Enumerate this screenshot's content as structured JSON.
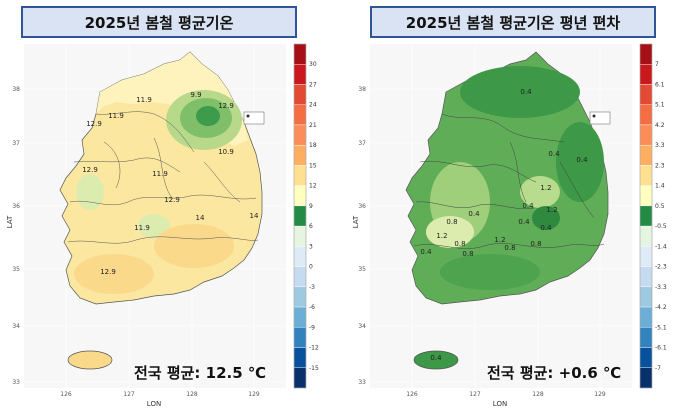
{
  "left_panel": {
    "title": "2025년 봄철 평균기온",
    "national_avg": "전국 평균: 12.5 ℃",
    "x_axis_label": "LON",
    "y_axis_label": "LAT",
    "x_ticks": [
      "126",
      "127",
      "128",
      "129"
    ],
    "y_ticks": [
      "33",
      "34",
      "35",
      "36",
      "37",
      "38"
    ],
    "contour_labels": [
      "11.9",
      "12.9",
      "9.9",
      "12.9",
      "11.9",
      "11.9",
      "10.9",
      "12.9",
      "14",
      "11.9",
      "12.9",
      "14",
      "12.9"
    ],
    "legend": {
      "values": [
        "30",
        "27",
        "24",
        "21",
        "18",
        "15",
        "12",
        "9",
        "6",
        "3",
        "0",
        "-3",
        "-6",
        "-9",
        "-12",
        "-15"
      ],
      "colors": [
        "#a50f15",
        "#cb181d",
        "#e34a33",
        "#f46d43",
        "#fc8d59",
        "#fdae61",
        "#fee090",
        "#ffffbf",
        "#238b45",
        "#e5f5e0",
        "#deebf7",
        "#c6dbef",
        "#9ecae1",
        "#6baed6",
        "#3182bd",
        "#08519c",
        "#08306b"
      ]
    }
  },
  "right_panel": {
    "title": "2025년 봄철 평균기온 평년 편차",
    "national_avg": "전국 평균: +0.6 ℃",
    "x_axis_label": "LON",
    "y_axis_label": "LAT",
    "x_ticks": [
      "126",
      "127",
      "128",
      "129"
    ],
    "y_ticks": [
      "33",
      "34",
      "35",
      "36",
      "37",
      "38"
    ],
    "contour_labels": [
      "0.4",
      "0.4",
      "0.4",
      "1.2",
      "0.4",
      "0.4",
      "0.8",
      "1.2",
      "0.8",
      "0.4",
      "1.2",
      "1.2",
      "0.8",
      "0.8",
      "0.4",
      "0.8",
      "0.4",
      "0.4"
    ],
    "legend": {
      "values": [
        "7",
        "6.1",
        "5.1",
        "4.2",
        "3.3",
        "2.3",
        "1.4",
        "0.5",
        "-0.5",
        "-1.4",
        "-2.3",
        "-3.3",
        "-4.2",
        "-5.1",
        "-6.1",
        "-7"
      ],
      "colors": [
        "#a50f15",
        "#cb181d",
        "#e34a33",
        "#f46d43",
        "#fc8d59",
        "#fdae61",
        "#fee090",
        "#ffffbf",
        "#238b45",
        "#e5f5e0",
        "#deebf7",
        "#c6dbef",
        "#9ecae1",
        "#6baed6",
        "#3182bd",
        "#08519c",
        "#08306b"
      ]
    }
  }
}
